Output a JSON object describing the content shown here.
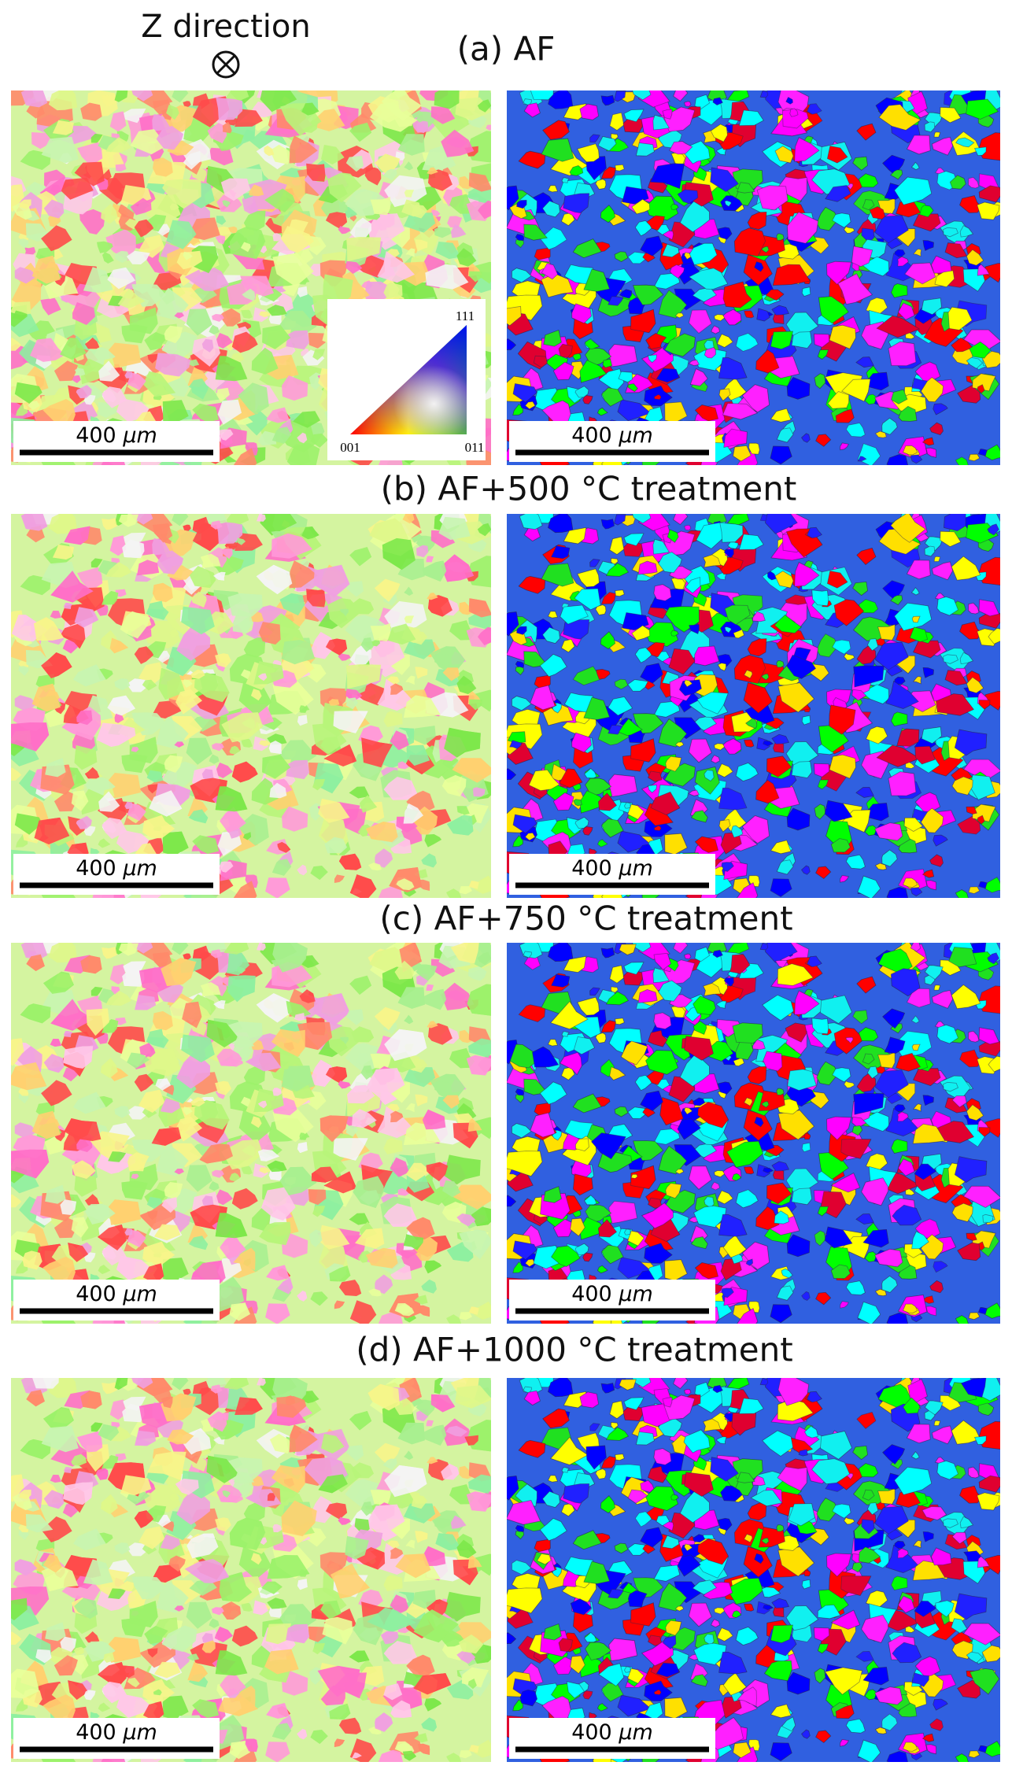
{
  "header": {
    "direction_label": "Z direction"
  },
  "panels": [
    {
      "title": "(a) AF",
      "scale_bars": [
        {
          "number": "400",
          "unit": "μm"
        },
        {
          "number": "400",
          "unit": "μm"
        }
      ]
    },
    {
      "title": "(b) AF+500 °C treatment",
      "scale_bars": [
        {
          "number": "400",
          "unit": "μm"
        },
        {
          "number": "400",
          "unit": "μm"
        }
      ]
    },
    {
      "title": "(c) AF+750 °C treatment",
      "scale_bars": [
        {
          "number": "400",
          "unit": "μm"
        },
        {
          "number": "400",
          "unit": "μm"
        }
      ]
    },
    {
      "title": "(d) AF+1000 °C treatment",
      "scale_bars": [
        {
          "number": "400",
          "unit": "μm"
        },
        {
          "number": "400",
          "unit": "μm"
        }
      ]
    }
  ],
  "ipf_key": {
    "labels": [
      "111",
      "001",
      "011"
    ]
  }
}
